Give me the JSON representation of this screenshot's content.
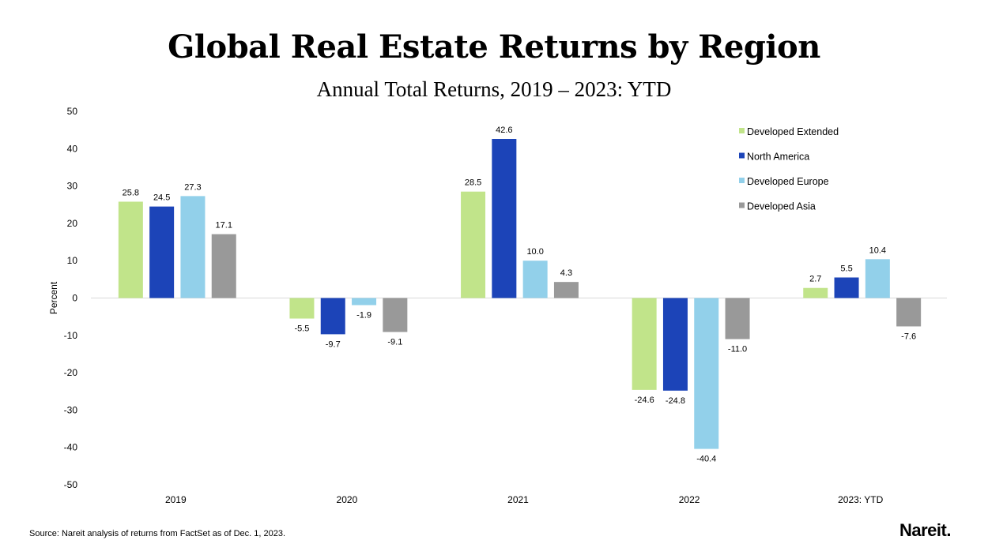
{
  "chart_data": {
    "type": "bar",
    "title": "Global Real Estate Returns by Region",
    "subtitle": "Annual Total Returns, 2019 – 2023: YTD",
    "ylabel": "Percent",
    "xlabel": "",
    "ylim": [
      -50,
      50
    ],
    "yticks": [
      50,
      40,
      30,
      20,
      10,
      0,
      -10,
      -20,
      -30,
      -40,
      -50
    ],
    "grid": false,
    "legend_position": "top-right",
    "categories": [
      "2019",
      "2020",
      "2021",
      "2022",
      "2023: YTD"
    ],
    "series": [
      {
        "name": "Developed Extended",
        "color": "#c1e48a",
        "values": [
          25.8,
          -5.5,
          28.5,
          -24.6,
          2.7
        ]
      },
      {
        "name": "North America",
        "color": "#1c44b8",
        "values": [
          24.5,
          -9.7,
          42.6,
          -24.8,
          5.5
        ]
      },
      {
        "name": "Developed Europe",
        "color": "#92d0ea",
        "values": [
          27.3,
          -1.9,
          10.0,
          -40.4,
          10.4
        ]
      },
      {
        "name": "Developed Asia",
        "color": "#999999",
        "values": [
          17.1,
          -9.1,
          4.3,
          -11.0,
          -7.6
        ]
      }
    ]
  },
  "footer": {
    "source": "Source: Nareit analysis of returns from FactSet as of Dec. 1, 2023.",
    "logo": "Nareit."
  }
}
